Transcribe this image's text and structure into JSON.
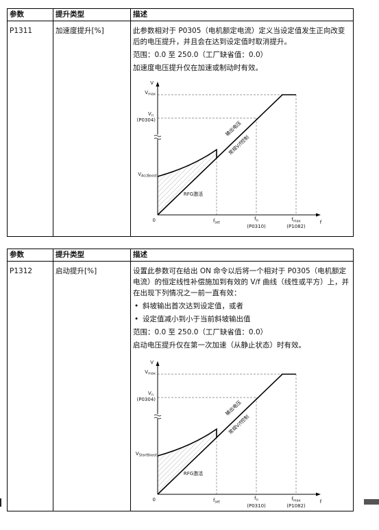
{
  "tables": [
    {
      "header": [
        "参数",
        "提升类型",
        "描述"
      ],
      "param": "P1311",
      "boost_type": "加速度提升[%]",
      "description": [
        {
          "lines": [
            "此参数相对于 P0305（电机额定电流）定义当设定值发生正向改变",
            "后的电压提升，并且会在达到设定值时取消提升。"
          ]
        },
        {
          "lines": [
            "范围：0.0 至 250.0（工厂缺省值：0.0）"
          ]
        },
        {
          "lines": [
            "加速度电压提升仅在加速或制动时有效。"
          ]
        }
      ],
      "diagram": {
        "y_axis": "V",
        "x_axis": "f",
        "origin": "0",
        "v_max": {
          "base": "V",
          "sub": "max"
        },
        "v_n": {
          "base": "V",
          "sub": "n",
          "param": "(P0304)"
        },
        "v_boost": {
          "base": "V",
          "sub": "AccBoost"
        },
        "f_set": {
          "base": "f",
          "sub": "set"
        },
        "f_n": {
          "base": "f",
          "sub": "n",
          "param": "(P0310)"
        },
        "f_max": {
          "base": "f",
          "sub": "max",
          "param": "(P1082)"
        },
        "curve_labels": [
          "输出电压",
          "常规V/f控制",
          "RFG激活"
        ]
      }
    },
    {
      "header": [
        "参数",
        "提升类型",
        "描述"
      ],
      "param": "P1312",
      "boost_type": "启动提升[%]",
      "description": [
        {
          "lines": [
            "设置此参数可在给出 ON 命令以后将一个相对于 P0305（电机额定",
            "电流）的恒定线性补偿施加到有效的 V/f 曲线（线性或平方）上，并",
            "在出现下列情况之一前一直有效："
          ]
        },
        {
          "bullet": "斜坡输出首次达到设定值，或者"
        },
        {
          "bullet": "设定值减小到小于当前斜坡输出值"
        },
        {
          "lines": [
            "范围：0.0 至 250.0（工厂缺省值：0.0）"
          ]
        },
        {
          "lines": [
            "启动电压提升仅在第一次加速（从静止状态）时有效。"
          ]
        }
      ],
      "diagram": {
        "y_axis": "V",
        "x_axis": "f",
        "origin": "0",
        "v_max": {
          "base": "V",
          "sub": "max"
        },
        "v_n": {
          "base": "V",
          "sub": "n",
          "param": "(P0304)"
        },
        "v_boost": {
          "base": "V",
          "sub": "StartBoost"
        },
        "f_set": {
          "base": "f",
          "sub": "set"
        },
        "f_n": {
          "base": "f",
          "sub": "n",
          "param": "(P0310)"
        },
        "f_max": {
          "base": "f",
          "sub": "max",
          "param": "(P1082)"
        },
        "curve_labels": [
          "输出电压",
          "常规V/f控制",
          "RFG激活"
        ]
      }
    }
  ]
}
